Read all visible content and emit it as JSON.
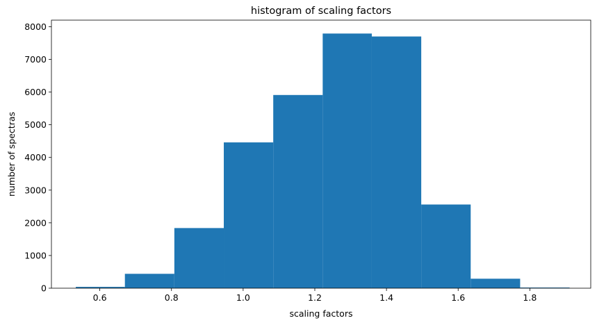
{
  "chart_data": {
    "type": "histogram",
    "title": "histogram of scaling factors",
    "xlabel": "scaling factors",
    "ylabel": "number of spectras",
    "bar_color": "#1f77b4",
    "xlim": [
      0.465,
      1.97
    ],
    "ylim": [
      0,
      8200
    ],
    "x_ticks": [
      0.6,
      0.8,
      1.0,
      1.2,
      1.4,
      1.6,
      1.8
    ],
    "x_tick_labels": [
      "0.6",
      "0.8",
      "1.0",
      "1.2",
      "1.4",
      "1.6",
      "1.8"
    ],
    "y_ticks": [
      0,
      1000,
      2000,
      3000,
      4000,
      5000,
      6000,
      7000,
      8000
    ],
    "y_tick_labels": [
      "0",
      "1000",
      "2000",
      "3000",
      "4000",
      "5000",
      "6000",
      "7000",
      "8000"
    ],
    "bins": [
      {
        "x0": 0.533,
        "x1": 0.67,
        "count": 40
      },
      {
        "x0": 0.67,
        "x1": 0.808,
        "count": 440
      },
      {
        "x0": 0.808,
        "x1": 0.946,
        "count": 1840
      },
      {
        "x0": 0.946,
        "x1": 1.084,
        "count": 4460
      },
      {
        "x0": 1.084,
        "x1": 1.222,
        "count": 5910
      },
      {
        "x0": 1.222,
        "x1": 1.359,
        "count": 7790
      },
      {
        "x0": 1.359,
        "x1": 1.497,
        "count": 7700
      },
      {
        "x0": 1.497,
        "x1": 1.635,
        "count": 2560
      },
      {
        "x0": 1.635,
        "x1": 1.773,
        "count": 290
      },
      {
        "x0": 1.773,
        "x1": 1.911,
        "count": 20
      }
    ]
  }
}
